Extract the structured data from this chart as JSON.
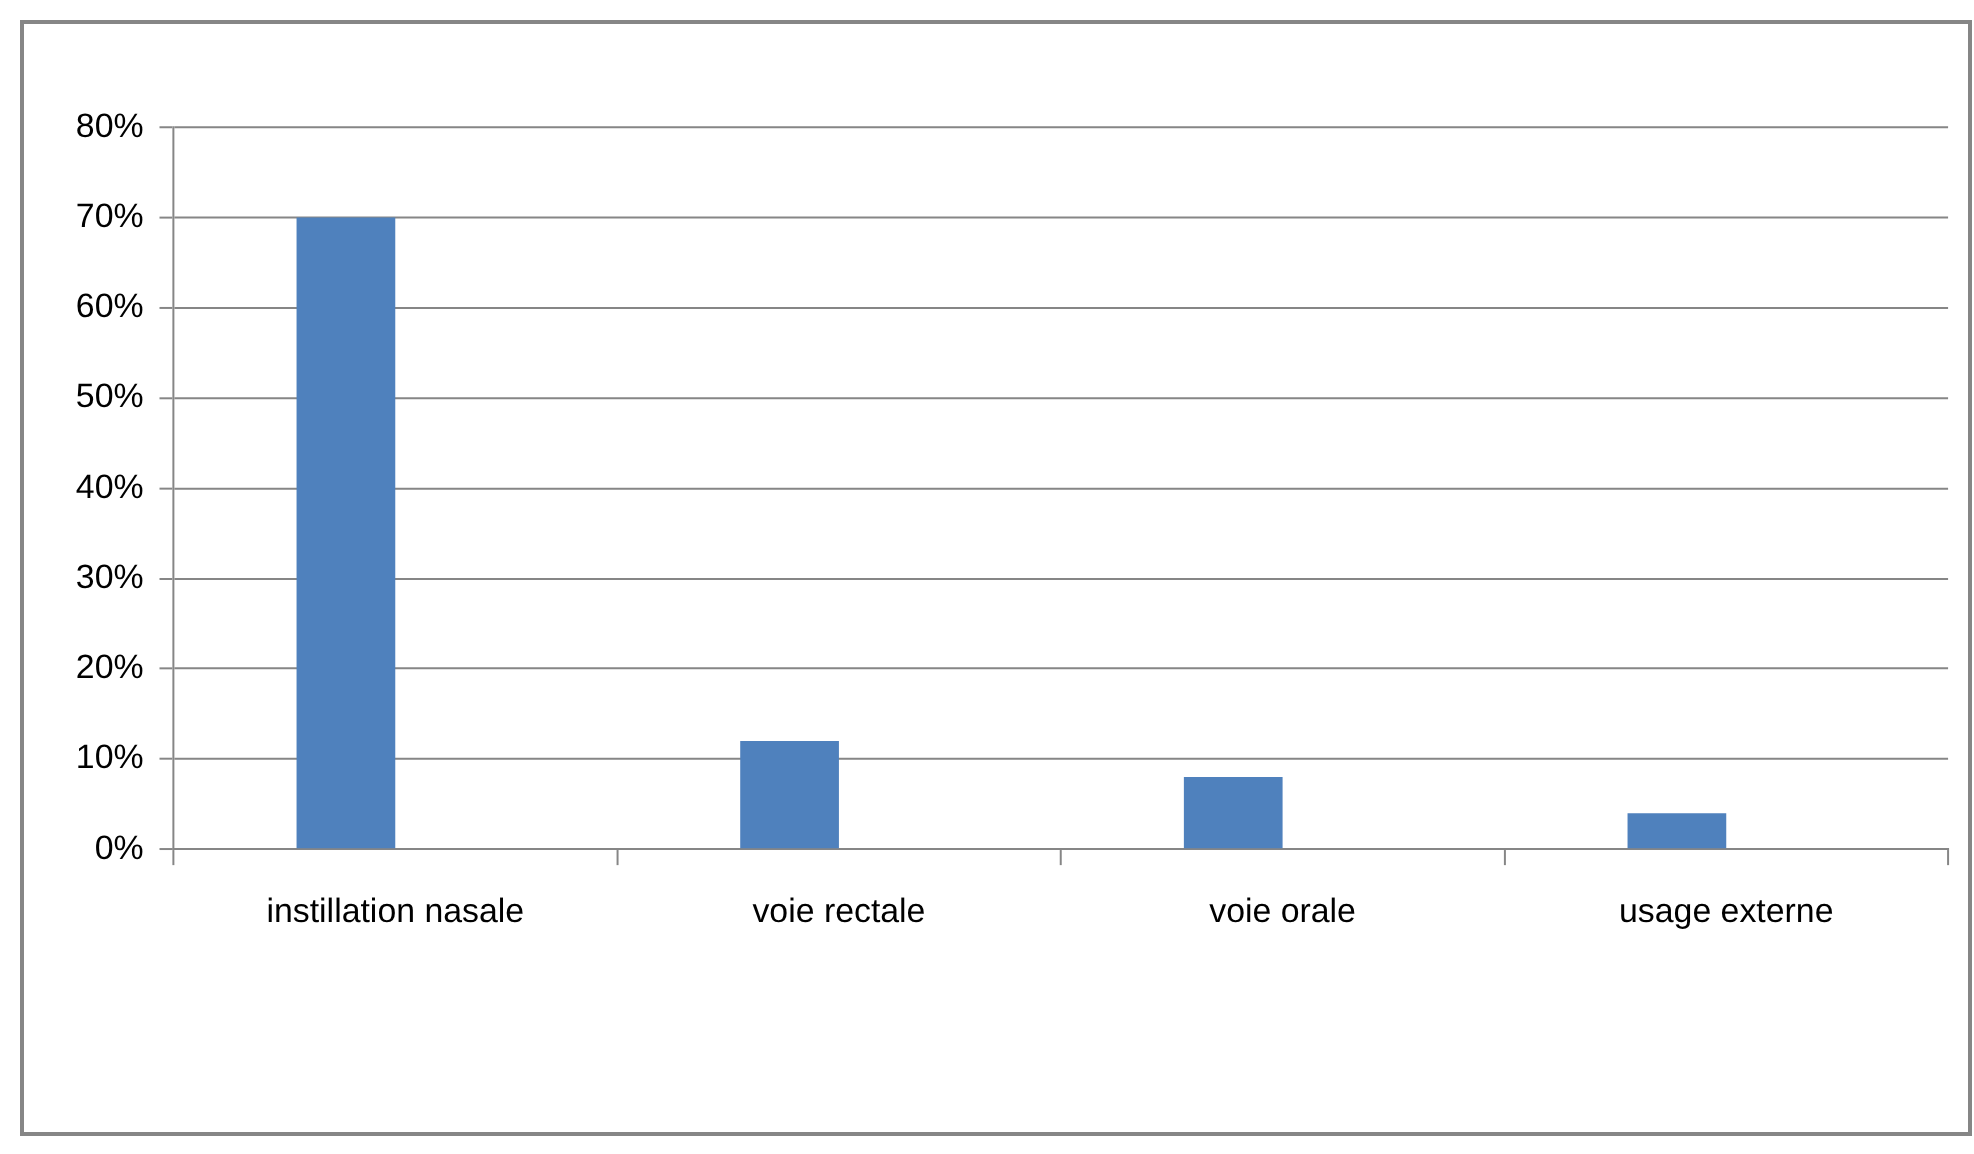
{
  "chart_data": {
    "type": "bar",
    "categories": [
      "instillation nasale",
      "voie rectale",
      "voie orale",
      "usage externe"
    ],
    "values": [
      70,
      12,
      8,
      4
    ],
    "color": "#4f81bd",
    "ylim": [
      0,
      80
    ],
    "yticks": [
      {
        "value": 0,
        "label": "0%"
      },
      {
        "value": 10,
        "label": "10%"
      },
      {
        "value": 20,
        "label": "20%"
      },
      {
        "value": 30,
        "label": "30%"
      },
      {
        "value": 40,
        "label": "40%"
      },
      {
        "value": 50,
        "label": "50%"
      },
      {
        "value": 60,
        "label": "60%"
      },
      {
        "value": 70,
        "label": "70%"
      },
      {
        "value": 80,
        "label": "80%"
      }
    ],
    "grid": "y",
    "legend": false
  }
}
